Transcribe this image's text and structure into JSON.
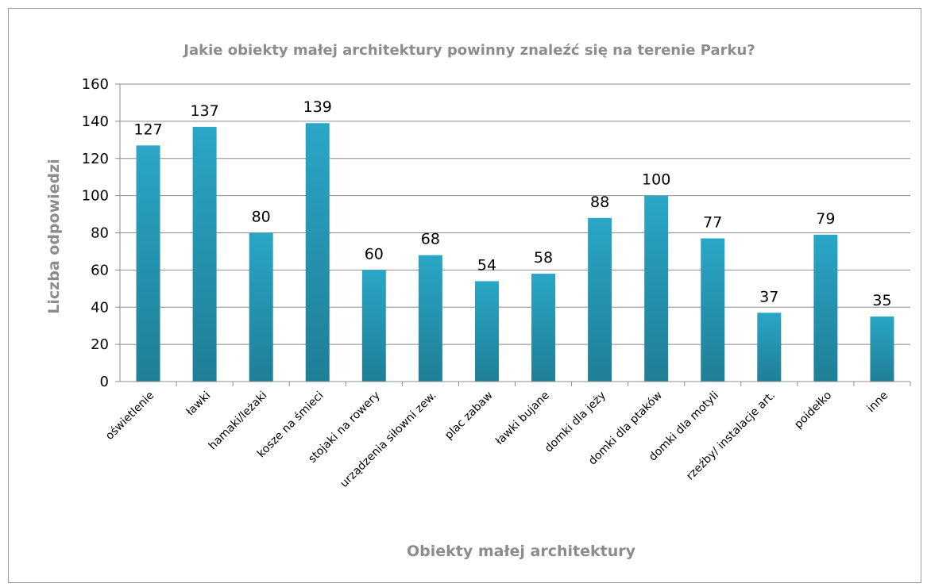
{
  "chart_data": {
    "type": "bar",
    "title": "Jakie obiekty małej architektury powinny znaleźć się na terenie Parku?",
    "xlabel": "Obiekty małej architektury",
    "ylabel": "Liczba odpowiedzi",
    "ylim": [
      0,
      160
    ],
    "yticks": [
      0,
      20,
      40,
      60,
      80,
      100,
      120,
      140,
      160
    ],
    "grid": true,
    "legend": "none",
    "bar_color": "#2aa6c6",
    "bar_color_dark": "#1f7f96",
    "categories": [
      "oświetlenie",
      "ławki",
      "hamaki/leżaki",
      "kosze na śmieci",
      "stojaki na rowery",
      "urządzenia siłowni zew.",
      "plac zabaw",
      "ławki bujane",
      "domki dla jeży",
      "domki dla ptaków",
      "domki dla motyli",
      "rzeźby/ instalacje art.",
      "poidełko",
      "inne"
    ],
    "values": [
      127,
      137,
      80,
      139,
      60,
      68,
      54,
      58,
      88,
      100,
      77,
      37,
      79,
      35
    ]
  }
}
